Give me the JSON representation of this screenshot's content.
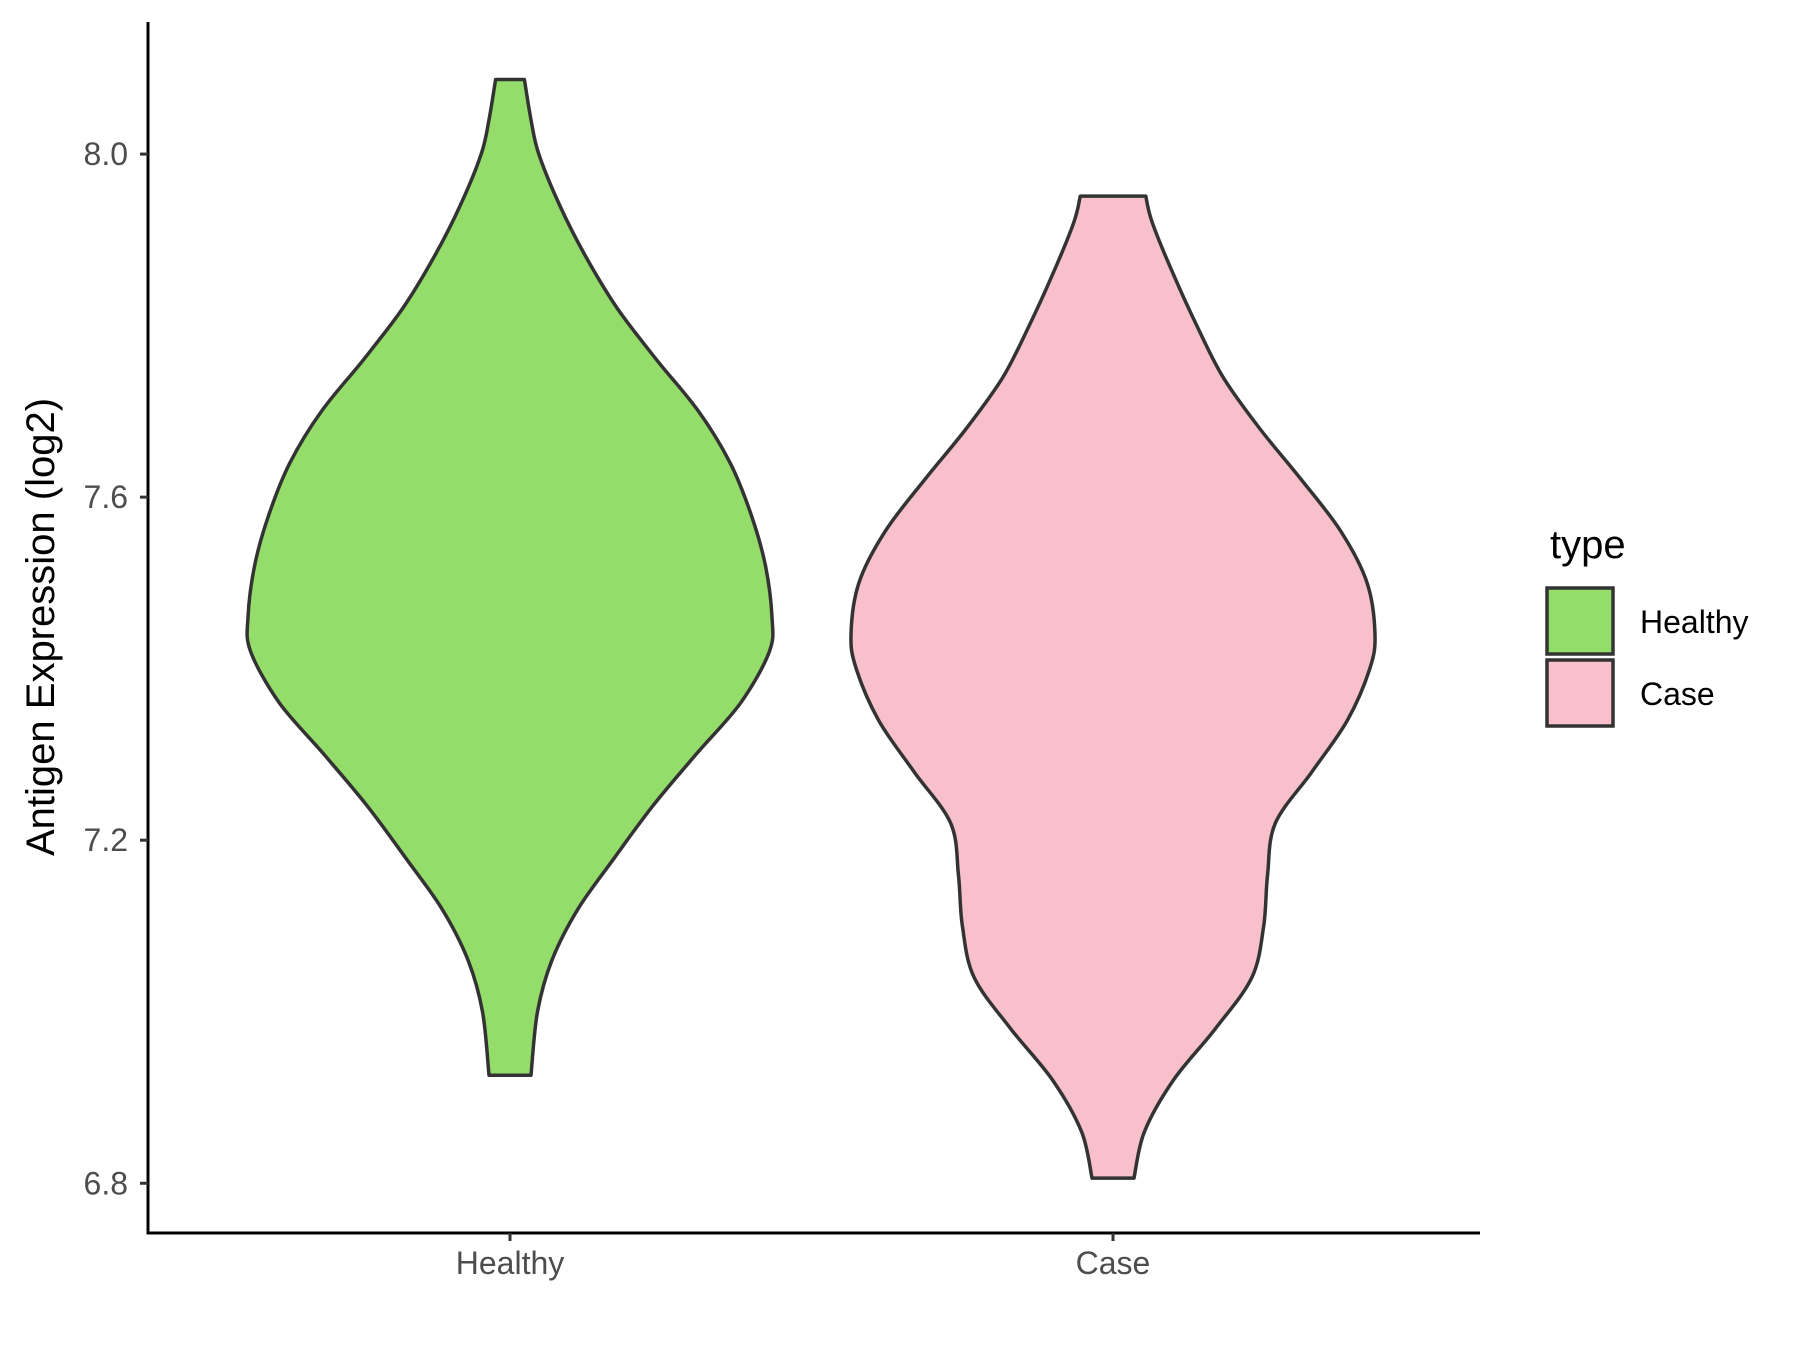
{
  "chart_data": {
    "type": "violin",
    "title": "",
    "xlabel": "",
    "ylabel": "Antigen Expression (log2)",
    "ylim": [
      6.742,
      8.154
    ],
    "yticks": [
      6.8,
      7.2,
      7.6,
      8.0
    ],
    "ytick_labels": [
      "6.8",
      "7.2",
      "7.6",
      "8.0"
    ],
    "categories": [
      "Healthy",
      "Case"
    ],
    "grid": false,
    "legend": {
      "title": "type",
      "placement": "right",
      "entries": [
        {
          "label": "Healthy",
          "color": "#95dd6a"
        },
        {
          "label": "Case",
          "color": "#f8c0cb"
        }
      ]
    },
    "series": [
      {
        "category": "Healthy",
        "color": "#95dd6a",
        "min": 6.926,
        "max": 8.087,
        "density_profile": [
          [
            6.926,
            0.08
          ],
          [
            7.0,
            0.105
          ],
          [
            7.06,
            0.16
          ],
          [
            7.12,
            0.26
          ],
          [
            7.18,
            0.4
          ],
          [
            7.24,
            0.545
          ],
          [
            7.3,
            0.71
          ],
          [
            7.36,
            0.88
          ],
          [
            7.42,
            0.99
          ],
          [
            7.46,
            1.0
          ],
          [
            7.52,
            0.975
          ],
          [
            7.58,
            0.92
          ],
          [
            7.64,
            0.84
          ],
          [
            7.7,
            0.72
          ],
          [
            7.76,
            0.56
          ],
          [
            7.82,
            0.41
          ],
          [
            7.88,
            0.29
          ],
          [
            7.94,
            0.19
          ],
          [
            8.0,
            0.11
          ],
          [
            8.04,
            0.08
          ],
          [
            8.087,
            0.055
          ]
        ]
      },
      {
        "category": "Case",
        "color": "#f8c0cb",
        "min": 6.806,
        "max": 7.951,
        "density_profile": [
          [
            6.806,
            0.08
          ],
          [
            6.86,
            0.12
          ],
          [
            6.92,
            0.23
          ],
          [
            6.98,
            0.39
          ],
          [
            7.04,
            0.53
          ],
          [
            7.1,
            0.575
          ],
          [
            7.16,
            0.59
          ],
          [
            7.22,
            0.62
          ],
          [
            7.28,
            0.76
          ],
          [
            7.34,
            0.895
          ],
          [
            7.4,
            0.98
          ],
          [
            7.44,
            1.0
          ],
          [
            7.5,
            0.97
          ],
          [
            7.56,
            0.87
          ],
          [
            7.62,
            0.72
          ],
          [
            7.68,
            0.56
          ],
          [
            7.74,
            0.42
          ],
          [
            7.8,
            0.32
          ],
          [
            7.86,
            0.23
          ],
          [
            7.92,
            0.15
          ],
          [
            7.951,
            0.125
          ]
        ]
      }
    ]
  }
}
